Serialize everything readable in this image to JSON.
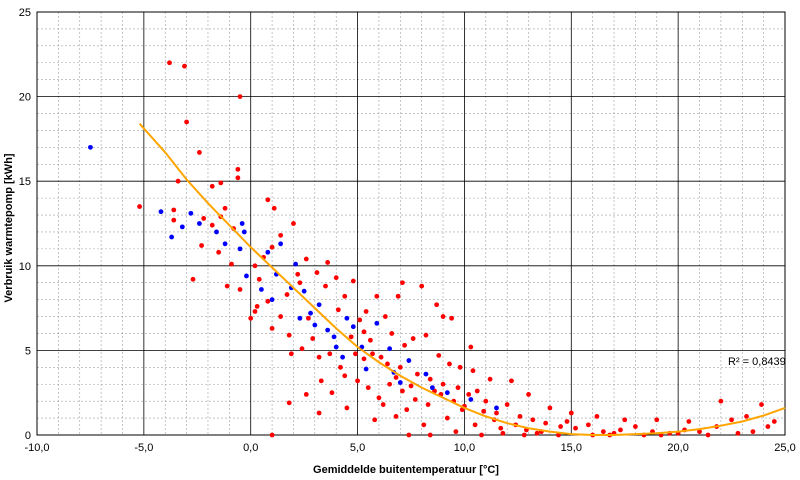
{
  "chart_data": {
    "type": "scatter",
    "title": "",
    "xlabel": "Gemiddelde buitentemperatuur [°C]",
    "ylabel": "Verbruik warmtepomp [kWh]",
    "xlim": [
      -10,
      25
    ],
    "ylim": [
      0,
      25
    ],
    "x_ticks": [
      -10,
      -5,
      0,
      5,
      10,
      15,
      20,
      25
    ],
    "x_tick_labels": [
      "-10,0",
      "-5,0",
      "0,0",
      "5,0",
      "10,0",
      "15,0",
      "20,0",
      "25,0"
    ],
    "y_ticks": [
      0,
      5,
      10,
      15,
      20,
      25
    ],
    "y_tick_labels": [
      "0",
      "5",
      "10",
      "15",
      "20",
      "25"
    ],
    "grid": true,
    "legend": "none",
    "annotation": "R² = 0,8439",
    "colors": {
      "series_red": "#ff0000",
      "series_blue": "#0000ff",
      "trend": "#ffa500",
      "grid_major": "#000000",
      "grid_minor": "#a0a0a0"
    },
    "series": [
      {
        "color": "#0000ff",
        "points": [
          [
            -7.5,
            17.0
          ],
          [
            -4.2,
            13.2
          ],
          [
            -3.7,
            11.7
          ],
          [
            -3.2,
            12.3
          ],
          [
            -2.8,
            13.1
          ],
          [
            -2.4,
            12.5
          ],
          [
            -1.6,
            12.0
          ],
          [
            -1.2,
            11.3
          ],
          [
            -0.4,
            12.5
          ],
          [
            -0.3,
            12.0
          ],
          [
            -0.5,
            11.0
          ],
          [
            0.8,
            10.8
          ],
          [
            1.4,
            11.3
          ],
          [
            1.2,
            9.5
          ],
          [
            0.5,
            8.6
          ],
          [
            1.0,
            8.0
          ],
          [
            -0.2,
            9.4
          ],
          [
            1.9,
            8.7
          ],
          [
            2.1,
            10.1
          ],
          [
            2.5,
            8.5
          ],
          [
            2.8,
            7.2
          ],
          [
            2.3,
            6.9
          ],
          [
            3.0,
            6.5
          ],
          [
            3.2,
            7.7
          ],
          [
            3.6,
            6.2
          ],
          [
            4.0,
            5.2
          ],
          [
            4.5,
            6.9
          ],
          [
            3.9,
            5.8
          ],
          [
            4.3,
            4.6
          ],
          [
            4.8,
            6.4
          ],
          [
            5.2,
            5.2
          ],
          [
            5.9,
            6.6
          ],
          [
            6.5,
            5.1
          ],
          [
            5.4,
            3.9
          ],
          [
            6.7,
            3.7
          ],
          [
            7.4,
            4.4
          ],
          [
            7.0,
            3.1
          ],
          [
            8.2,
            3.6
          ],
          [
            8.5,
            2.8
          ],
          [
            9.2,
            2.5
          ],
          [
            10.3,
            2.1
          ],
          [
            11.5,
            1.6
          ]
        ]
      },
      {
        "color": "#ff0000",
        "points": [
          [
            -3.8,
            22.0
          ],
          [
            -3.1,
            21.8
          ],
          [
            -0.5,
            20.0
          ],
          [
            -3.0,
            18.5
          ],
          [
            -2.4,
            16.7
          ],
          [
            -0.6,
            15.7
          ],
          [
            -0.6,
            15.2
          ],
          [
            -1.4,
            14.9
          ],
          [
            -1.8,
            14.7
          ],
          [
            -3.4,
            15.0
          ],
          [
            -5.2,
            13.5
          ],
          [
            -3.6,
            13.3
          ],
          [
            -1.2,
            13.4
          ],
          [
            0.8,
            13.9
          ],
          [
            1.1,
            13.4
          ],
          [
            -2.2,
            12.8
          ],
          [
            -1.4,
            12.9
          ],
          [
            -3.6,
            12.7
          ],
          [
            -2.3,
            11.2
          ],
          [
            -1.8,
            12.4
          ],
          [
            -0.9,
            10.1
          ],
          [
            -0.8,
            12.2
          ],
          [
            -0.5,
            8.6
          ],
          [
            0.2,
            10.0
          ],
          [
            0.6,
            10.5
          ],
          [
            1.0,
            11.1
          ],
          [
            1.4,
            11.8
          ],
          [
            2.0,
            12.5
          ],
          [
            0.3,
            7.6
          ],
          [
            0.0,
            6.9
          ],
          [
            0.2,
            7.3
          ],
          [
            0.8,
            7.9
          ],
          [
            1.4,
            7.0
          ],
          [
            1.7,
            8.3
          ],
          [
            2.2,
            9.5
          ],
          [
            2.6,
            10.4
          ],
          [
            -1.1,
            8.8
          ],
          [
            -2.7,
            9.2
          ],
          [
            -1.5,
            10.8
          ],
          [
            0.4,
            9.2
          ],
          [
            1.0,
            6.3
          ],
          [
            1.8,
            5.9
          ],
          [
            2.7,
            6.9
          ],
          [
            3.1,
            9.6
          ],
          [
            3.6,
            10.2
          ],
          [
            4.0,
            9.3
          ],
          [
            4.4,
            8.2
          ],
          [
            4.8,
            9.1
          ],
          [
            5.4,
            7.3
          ],
          [
            5.9,
            8.2
          ],
          [
            6.3,
            7.0
          ],
          [
            6.9,
            8.2
          ],
          [
            7.1,
            9.0
          ],
          [
            8.0,
            8.8
          ],
          [
            8.7,
            7.7
          ],
          [
            9.0,
            7.0
          ],
          [
            9.4,
            6.9
          ],
          [
            10.3,
            5.2
          ],
          [
            1.9,
            4.8
          ],
          [
            2.4,
            5.1
          ],
          [
            2.9,
            5.7
          ],
          [
            3.2,
            4.6
          ],
          [
            3.7,
            4.8
          ],
          [
            4.2,
            4.0
          ],
          [
            4.7,
            5.8
          ],
          [
            5.3,
            6.1
          ],
          [
            5.6,
            5.6
          ],
          [
            6.1,
            4.6
          ],
          [
            6.6,
            6.0
          ],
          [
            7.2,
            5.3
          ],
          [
            7.6,
            5.7
          ],
          [
            8.2,
            5.9
          ],
          [
            8.8,
            4.7
          ],
          [
            9.3,
            4.2
          ],
          [
            9.8,
            4.0
          ],
          [
            10.4,
            3.8
          ],
          [
            3.3,
            3.2
          ],
          [
            3.8,
            2.5
          ],
          [
            4.4,
            3.5
          ],
          [
            5.0,
            3.2
          ],
          [
            5.5,
            2.8
          ],
          [
            6.0,
            2.2
          ],
          [
            6.5,
            3.0
          ],
          [
            7.1,
            2.6
          ],
          [
            7.7,
            2.1
          ],
          [
            8.3,
            1.8
          ],
          [
            8.9,
            2.4
          ],
          [
            9.5,
            2.0
          ],
          [
            10.0,
            1.7
          ],
          [
            10.6,
            2.6
          ],
          [
            11.0,
            2.0
          ],
          [
            11.5,
            1.3
          ],
          [
            12.0,
            1.8
          ],
          [
            12.6,
            1.1
          ],
          [
            13.2,
            0.9
          ],
          [
            13.8,
            0.7
          ],
          [
            14.5,
            0.5
          ],
          [
            15.2,
            0.4
          ],
          [
            15.8,
            0.6
          ],
          [
            16.5,
            0.2
          ],
          [
            17.3,
            0.3
          ],
          [
            18.0,
            0.5
          ],
          [
            18.8,
            0.2
          ],
          [
            19.6,
            0.1
          ],
          [
            20.3,
            0.3
          ],
          [
            21.0,
            0.2
          ],
          [
            21.8,
            0.5
          ],
          [
            22.5,
            0.9
          ],
          [
            23.2,
            1.1
          ],
          [
            23.9,
            1.8
          ],
          [
            22.0,
            2.0
          ],
          [
            20.5,
            0.8
          ],
          [
            19.0,
            0.9
          ],
          [
            17.5,
            0.9
          ],
          [
            16.2,
            1.1
          ],
          [
            15.0,
            1.3
          ],
          [
            14.0,
            1.6
          ],
          [
            13.0,
            2.4
          ],
          [
            12.2,
            3.2
          ],
          [
            11.2,
            3.3
          ],
          [
            1.0,
            0.0
          ],
          [
            1.8,
            1.9
          ],
          [
            2.6,
            2.4
          ],
          [
            3.2,
            1.3
          ],
          [
            4.5,
            1.6
          ],
          [
            5.8,
            0.9
          ],
          [
            6.8,
            1.1
          ],
          [
            7.4,
            0.0
          ],
          [
            8.4,
            0.0
          ],
          [
            9.6,
            0.2
          ],
          [
            10.8,
            0.0
          ],
          [
            11.8,
            0.1
          ],
          [
            12.8,
            0.0
          ],
          [
            13.6,
            0.2
          ],
          [
            14.4,
            0.0
          ],
          [
            16.0,
            0.0
          ],
          [
            17.0,
            0.1
          ],
          [
            18.4,
            0.0
          ],
          [
            19.2,
            0.0
          ],
          [
            20.0,
            0.1
          ],
          [
            21.4,
            0.0
          ],
          [
            22.8,
            0.1
          ],
          [
            24.2,
            0.5
          ],
          [
            2.3,
            9.0
          ],
          [
            3.5,
            8.8
          ],
          [
            4.1,
            7.4
          ],
          [
            5.1,
            6.8
          ],
          [
            5.7,
            4.8
          ],
          [
            6.4,
            4.2
          ],
          [
            7.0,
            4.0
          ],
          [
            7.8,
            3.6
          ],
          [
            8.4,
            3.3
          ],
          [
            9.0,
            3.0
          ],
          [
            9.7,
            2.8
          ],
          [
            10.2,
            2.4
          ],
          [
            10.9,
            1.4
          ],
          [
            11.4,
            0.9
          ],
          [
            12.4,
            0.6
          ],
          [
            12.9,
            0.3
          ],
          [
            13.4,
            0.1
          ],
          [
            6.2,
            1.8
          ],
          [
            7.3,
            1.5
          ],
          [
            8.1,
            0.6
          ],
          [
            9.2,
            1.0
          ],
          [
            10.5,
            0.6
          ],
          [
            4.9,
            4.8
          ],
          [
            5.3,
            4.5
          ],
          [
            6.8,
            3.4
          ],
          [
            7.5,
            2.9
          ],
          [
            8.6,
            2.6
          ],
          [
            9.9,
            1.5
          ],
          [
            11.7,
            0.4
          ],
          [
            14.8,
            0.8
          ],
          [
            16.8,
            0.0
          ],
          [
            23.5,
            0.2
          ],
          [
            24.5,
            0.8
          ]
        ]
      }
    ],
    "trendline": {
      "type": "polynomial",
      "color": "#ffa500",
      "points": [
        [
          -5.2,
          18.4
        ],
        [
          -4.0,
          16.7
        ],
        [
          -3.0,
          15.1
        ],
        [
          -2.0,
          13.7
        ],
        [
          -1.0,
          12.4
        ],
        [
          0.0,
          11.1
        ],
        [
          1.0,
          9.9
        ],
        [
          2.0,
          8.7
        ],
        [
          3.0,
          7.5
        ],
        [
          4.0,
          6.3
        ],
        [
          5.0,
          5.2
        ],
        [
          6.0,
          4.3
        ],
        [
          7.0,
          3.5
        ],
        [
          8.0,
          2.8
        ],
        [
          9.0,
          2.2
        ],
        [
          10.0,
          1.6
        ],
        [
          11.0,
          1.1
        ],
        [
          12.0,
          0.7
        ],
        [
          13.0,
          0.4
        ],
        [
          14.0,
          0.2
        ],
        [
          15.0,
          0.05
        ],
        [
          16.0,
          0.0
        ],
        [
          17.0,
          0.0
        ],
        [
          18.0,
          0.05
        ],
        [
          19.0,
          0.1
        ],
        [
          20.0,
          0.2
        ],
        [
          21.0,
          0.35
        ],
        [
          22.0,
          0.55
        ],
        [
          23.0,
          0.8
        ],
        [
          24.0,
          1.15
        ],
        [
          25.0,
          1.6
        ]
      ]
    }
  }
}
